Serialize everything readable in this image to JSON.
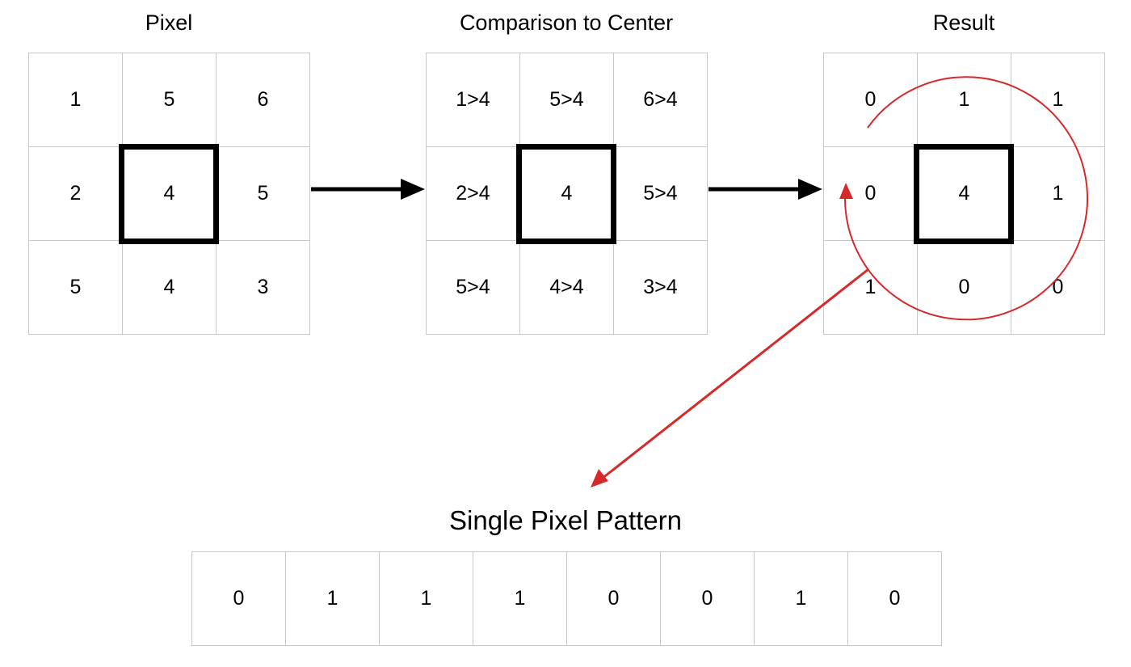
{
  "pixel": {
    "title": "Pixel",
    "cells": [
      "1",
      "5",
      "6",
      "2",
      "4",
      "5",
      "5",
      "4",
      "3"
    ]
  },
  "comparison": {
    "title": "Comparison to Center",
    "cells": [
      "1>4",
      "5>4",
      "6>4",
      "2>4",
      "4",
      "5>4",
      "5>4",
      "4>4",
      "3>4"
    ]
  },
  "result": {
    "title": "Result",
    "cells": [
      "0",
      "1",
      "1",
      "0",
      "4",
      "1",
      "1",
      "0",
      "0"
    ]
  },
  "pattern": {
    "title": "Single Pixel Pattern",
    "cells": [
      "0",
      "1",
      "1",
      "1",
      "0",
      "0",
      "1",
      "0"
    ]
  },
  "colors": {
    "arrow": "#000000",
    "accent": "#d62a2a"
  }
}
